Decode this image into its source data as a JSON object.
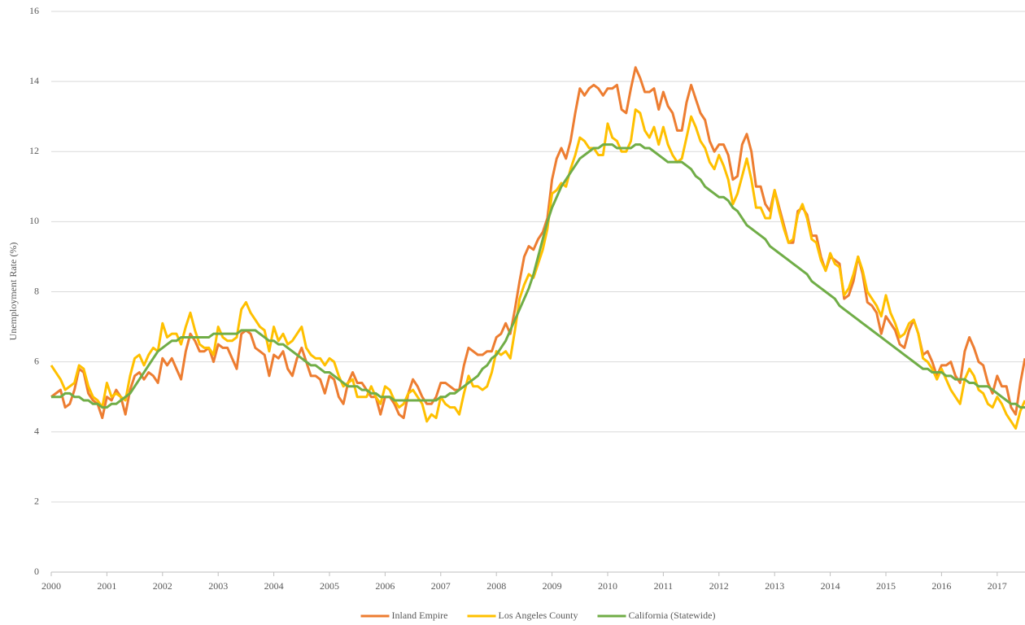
{
  "chart_data": {
    "type": "line",
    "y_label": "Unemployment Rate (%)",
    "xlim": [
      2000,
      2017.5
    ],
    "xticks": [
      2000,
      2001,
      2002,
      2003,
      2004,
      2005,
      2006,
      2007,
      2008,
      2009,
      2010,
      2011,
      2012,
      2013,
      2014,
      2015,
      2016,
      2017
    ],
    "ylim": [
      0,
      16
    ],
    "yticks": [
      0,
      2,
      4,
      6,
      8,
      10,
      12,
      14,
      16
    ],
    "grid": true,
    "legend": "bottom",
    "x": [
      2000,
      2000.083,
      2000.167,
      2000.25,
      2000.333,
      2000.417,
      2000.5,
      2000.583,
      2000.667,
      2000.75,
      2000.833,
      2000.917,
      2001,
      2001.083,
      2001.167,
      2001.25,
      2001.333,
      2001.417,
      2001.5,
      2001.583,
      2001.667,
      2001.75,
      2001.833,
      2001.917,
      2002,
      2002.083,
      2002.167,
      2002.25,
      2002.333,
      2002.417,
      2002.5,
      2002.583,
      2002.667,
      2002.75,
      2002.833,
      2002.917,
      2003,
      2003.083,
      2003.167,
      2003.25,
      2003.333,
      2003.417,
      2003.5,
      2003.583,
      2003.667,
      2003.75,
      2003.833,
      2003.917,
      2004,
      2004.083,
      2004.167,
      2004.25,
      2004.333,
      2004.417,
      2004.5,
      2004.583,
      2004.667,
      2004.75,
      2004.833,
      2004.917,
      2005,
      2005.083,
      2005.167,
      2005.25,
      2005.333,
      2005.417,
      2005.5,
      2005.583,
      2005.667,
      2005.75,
      2005.833,
      2005.917,
      2006,
      2006.083,
      2006.167,
      2006.25,
      2006.333,
      2006.417,
      2006.5,
      2006.583,
      2006.667,
      2006.75,
      2006.833,
      2006.917,
      2007,
      2007.083,
      2007.167,
      2007.25,
      2007.333,
      2007.417,
      2007.5,
      2007.583,
      2007.667,
      2007.75,
      2007.833,
      2007.917,
      2008,
      2008.083,
      2008.167,
      2008.25,
      2008.333,
      2008.417,
      2008.5,
      2008.583,
      2008.667,
      2008.75,
      2008.833,
      2008.917,
      2009,
      2009.083,
      2009.167,
      2009.25,
      2009.333,
      2009.417,
      2009.5,
      2009.583,
      2009.667,
      2009.75,
      2009.833,
      2009.917,
      2010,
      2010.083,
      2010.167,
      2010.25,
      2010.333,
      2010.417,
      2010.5,
      2010.583,
      2010.667,
      2010.75,
      2010.833,
      2010.917,
      2011,
      2011.083,
      2011.167,
      2011.25,
      2011.333,
      2011.417,
      2011.5,
      2011.583,
      2011.667,
      2011.75,
      2011.833,
      2011.917,
      2012,
      2012.083,
      2012.167,
      2012.25,
      2012.333,
      2012.417,
      2012.5,
      2012.583,
      2012.667,
      2012.75,
      2012.833,
      2012.917,
      2013,
      2013.083,
      2013.167,
      2013.25,
      2013.333,
      2013.417,
      2013.5,
      2013.583,
      2013.667,
      2013.75,
      2013.833,
      2013.917,
      2014,
      2014.083,
      2014.167,
      2014.25,
      2014.333,
      2014.417,
      2014.5,
      2014.583,
      2014.667,
      2014.75,
      2014.833,
      2014.917,
      2015,
      2015.083,
      2015.167,
      2015.25,
      2015.333,
      2015.417,
      2015.5,
      2015.583,
      2015.667,
      2015.75,
      2015.833,
      2015.917,
      2016,
      2016.083,
      2016.167,
      2016.25,
      2016.333,
      2016.417,
      2016.5,
      2016.583,
      2016.667,
      2016.75,
      2016.833,
      2016.917,
      2017,
      2017.083,
      2017.167,
      2017.25,
      2017.333,
      2017.417,
      2017.5
    ],
    "series": [
      {
        "name": "Inland Empire",
        "color": "#ed7d31",
        "values": [
          5.0,
          5.1,
          5.2,
          4.7,
          4.8,
          5.2,
          5.8,
          5.7,
          5.1,
          4.9,
          4.8,
          4.4,
          5.0,
          4.9,
          5.2,
          5.0,
          4.5,
          5.2,
          5.6,
          5.7,
          5.5,
          5.7,
          5.6,
          5.4,
          6.1,
          5.9,
          6.1,
          5.8,
          5.5,
          6.3,
          6.8,
          6.6,
          6.3,
          6.3,
          6.4,
          6.0,
          6.5,
          6.4,
          6.4,
          6.1,
          5.8,
          6.8,
          6.9,
          6.8,
          6.4,
          6.3,
          6.2,
          5.6,
          6.2,
          6.1,
          6.3,
          5.8,
          5.6,
          6.1,
          6.4,
          6.0,
          5.6,
          5.6,
          5.5,
          5.1,
          5.6,
          5.5,
          5.0,
          4.8,
          5.4,
          5.7,
          5.4,
          5.4,
          5.2,
          5.0,
          5.0,
          4.5,
          5.0,
          5.0,
          4.8,
          4.5,
          4.4,
          5.1,
          5.5,
          5.3,
          5.0,
          4.8,
          4.8,
          5.0,
          5.4,
          5.4,
          5.3,
          5.2,
          5.2,
          5.9,
          6.4,
          6.3,
          6.2,
          6.2,
          6.3,
          6.3,
          6.7,
          6.8,
          7.1,
          6.8,
          7.5,
          8.3,
          9.0,
          9.3,
          9.2,
          9.5,
          9.7,
          10.1,
          11.2,
          11.8,
          12.1,
          11.8,
          12.3,
          13.1,
          13.8,
          13.6,
          13.8,
          13.9,
          13.8,
          13.6,
          13.8,
          13.8,
          13.9,
          13.2,
          13.1,
          13.8,
          14.4,
          14.1,
          13.7,
          13.7,
          13.8,
          13.2,
          13.7,
          13.3,
          13.1,
          12.6,
          12.6,
          13.4,
          13.9,
          13.5,
          13.1,
          12.9,
          12.3,
          12.0,
          12.2,
          12.2,
          11.9,
          11.2,
          11.3,
          12.2,
          12.5,
          12.0,
          11.0,
          11.0,
          10.5,
          10.3,
          10.9,
          10.4,
          9.9,
          9.4,
          9.4,
          10.3,
          10.4,
          10.2,
          9.6,
          9.6,
          9.0,
          8.6,
          9.0,
          8.9,
          8.8,
          7.8,
          7.9,
          8.3,
          9.0,
          8.5,
          7.7,
          7.6,
          7.4,
          6.8,
          7.3,
          7.1,
          6.9,
          6.5,
          6.4,
          6.9,
          7.2,
          6.8,
          6.2,
          6.3,
          6.0,
          5.6,
          5.9,
          5.9,
          6.0,
          5.6,
          5.4,
          6.3,
          6.7,
          6.4,
          6.0,
          5.9,
          5.4,
          5.1,
          5.6,
          5.3,
          5.3,
          4.7,
          4.5,
          5.4,
          6.1
        ]
      },
      {
        "name": "Los Angeles County",
        "color": "#ffc000",
        "values": [
          5.9,
          5.7,
          5.5,
          5.2,
          5.3,
          5.4,
          5.9,
          5.8,
          5.3,
          5.0,
          4.9,
          4.7,
          5.4,
          5.0,
          5.1,
          5.0,
          4.9,
          5.6,
          6.1,
          6.2,
          5.9,
          6.2,
          6.4,
          6.3,
          7.1,
          6.7,
          6.8,
          6.8,
          6.5,
          7.0,
          7.4,
          6.9,
          6.5,
          6.4,
          6.4,
          6.2,
          7.0,
          6.7,
          6.6,
          6.6,
          6.7,
          7.5,
          7.7,
          7.4,
          7.2,
          7.0,
          6.9,
          6.3,
          7.0,
          6.6,
          6.8,
          6.5,
          6.6,
          6.8,
          7.0,
          6.4,
          6.2,
          6.1,
          6.1,
          5.9,
          6.1,
          6.0,
          5.6,
          5.3,
          5.4,
          5.5,
          5.0,
          5.0,
          5.0,
          5.3,
          5.0,
          4.8,
          5.3,
          5.2,
          4.9,
          4.7,
          4.8,
          5.1,
          5.2,
          5.0,
          4.8,
          4.3,
          4.5,
          4.4,
          5.0,
          4.8,
          4.7,
          4.7,
          4.5,
          5.1,
          5.6,
          5.3,
          5.3,
          5.2,
          5.3,
          5.7,
          6.3,
          6.2,
          6.3,
          6.1,
          6.9,
          7.8,
          8.2,
          8.5,
          8.4,
          8.8,
          9.2,
          9.8,
          10.8,
          10.9,
          11.1,
          11.0,
          11.5,
          11.9,
          12.4,
          12.3,
          12.1,
          12.1,
          11.9,
          11.9,
          12.8,
          12.4,
          12.3,
          12.0,
          12.0,
          12.3,
          13.2,
          13.1,
          12.6,
          12.4,
          12.7,
          12.2,
          12.7,
          12.2,
          11.9,
          11.7,
          11.8,
          12.4,
          13.0,
          12.7,
          12.3,
          12.1,
          11.7,
          11.5,
          11.9,
          11.6,
          11.2,
          10.5,
          10.8,
          11.3,
          11.8,
          11.2,
          10.4,
          10.4,
          10.1,
          10.1,
          10.9,
          10.3,
          9.8,
          9.4,
          9.5,
          10.2,
          10.5,
          10.1,
          9.5,
          9.4,
          8.9,
          8.6,
          9.1,
          8.8,
          8.7,
          7.9,
          8.1,
          8.5,
          9.0,
          8.6,
          8.0,
          7.8,
          7.6,
          7.3,
          7.9,
          7.4,
          7.1,
          6.7,
          6.8,
          7.1,
          7.2,
          6.8,
          6.1,
          6.0,
          5.8,
          5.5,
          5.8,
          5.5,
          5.2,
          5.0,
          4.8,
          5.5,
          5.8,
          5.6,
          5.2,
          5.1,
          4.8,
          4.7,
          5.0,
          4.8,
          4.5,
          4.3,
          4.1,
          4.6,
          4.9
        ]
      },
      {
        "name": "California (Statewide)",
        "color": "#70ad47",
        "values": [
          5.0,
          5.0,
          5.0,
          5.1,
          5.1,
          5.0,
          5.0,
          4.9,
          4.9,
          4.8,
          4.8,
          4.7,
          4.7,
          4.8,
          4.8,
          4.9,
          5.0,
          5.1,
          5.3,
          5.5,
          5.7,
          5.9,
          6.1,
          6.3,
          6.4,
          6.5,
          6.6,
          6.6,
          6.7,
          6.7,
          6.7,
          6.7,
          6.7,
          6.7,
          6.7,
          6.8,
          6.8,
          6.8,
          6.8,
          6.8,
          6.8,
          6.9,
          6.9,
          6.9,
          6.9,
          6.8,
          6.7,
          6.6,
          6.6,
          6.5,
          6.5,
          6.4,
          6.3,
          6.2,
          6.1,
          6.0,
          5.9,
          5.9,
          5.8,
          5.7,
          5.7,
          5.6,
          5.5,
          5.4,
          5.3,
          5.3,
          5.3,
          5.2,
          5.2,
          5.1,
          5.1,
          5.0,
          5.0,
          5.0,
          4.9,
          4.9,
          4.9,
          4.9,
          4.9,
          4.9,
          4.9,
          4.9,
          4.9,
          4.9,
          5.0,
          5.0,
          5.1,
          5.1,
          5.2,
          5.3,
          5.4,
          5.5,
          5.6,
          5.8,
          5.9,
          6.1,
          6.2,
          6.4,
          6.6,
          6.9,
          7.2,
          7.5,
          7.8,
          8.1,
          8.5,
          9.0,
          9.5,
          10.0,
          10.4,
          10.7,
          11.0,
          11.2,
          11.4,
          11.6,
          11.8,
          11.9,
          12.0,
          12.1,
          12.1,
          12.2,
          12.2,
          12.2,
          12.1,
          12.1,
          12.1,
          12.1,
          12.2,
          12.2,
          12.1,
          12.1,
          12.0,
          11.9,
          11.8,
          11.7,
          11.7,
          11.7,
          11.7,
          11.6,
          11.5,
          11.3,
          11.2,
          11.0,
          10.9,
          10.8,
          10.7,
          10.7,
          10.6,
          10.4,
          10.3,
          10.1,
          9.9,
          9.8,
          9.7,
          9.6,
          9.5,
          9.3,
          9.2,
          9.1,
          9.0,
          8.9,
          8.8,
          8.7,
          8.6,
          8.5,
          8.3,
          8.2,
          8.1,
          8.0,
          7.9,
          7.8,
          7.6,
          7.5,
          7.4,
          7.3,
          7.2,
          7.1,
          7.0,
          6.9,
          6.8,
          6.7,
          6.6,
          6.5,
          6.4,
          6.3,
          6.2,
          6.1,
          6.0,
          5.9,
          5.8,
          5.8,
          5.7,
          5.7,
          5.7,
          5.6,
          5.6,
          5.5,
          5.5,
          5.5,
          5.4,
          5.4,
          5.3,
          5.3,
          5.3,
          5.2,
          5.1,
          5.0,
          4.9,
          4.8,
          4.8,
          4.7,
          4.7
        ]
      }
    ]
  }
}
